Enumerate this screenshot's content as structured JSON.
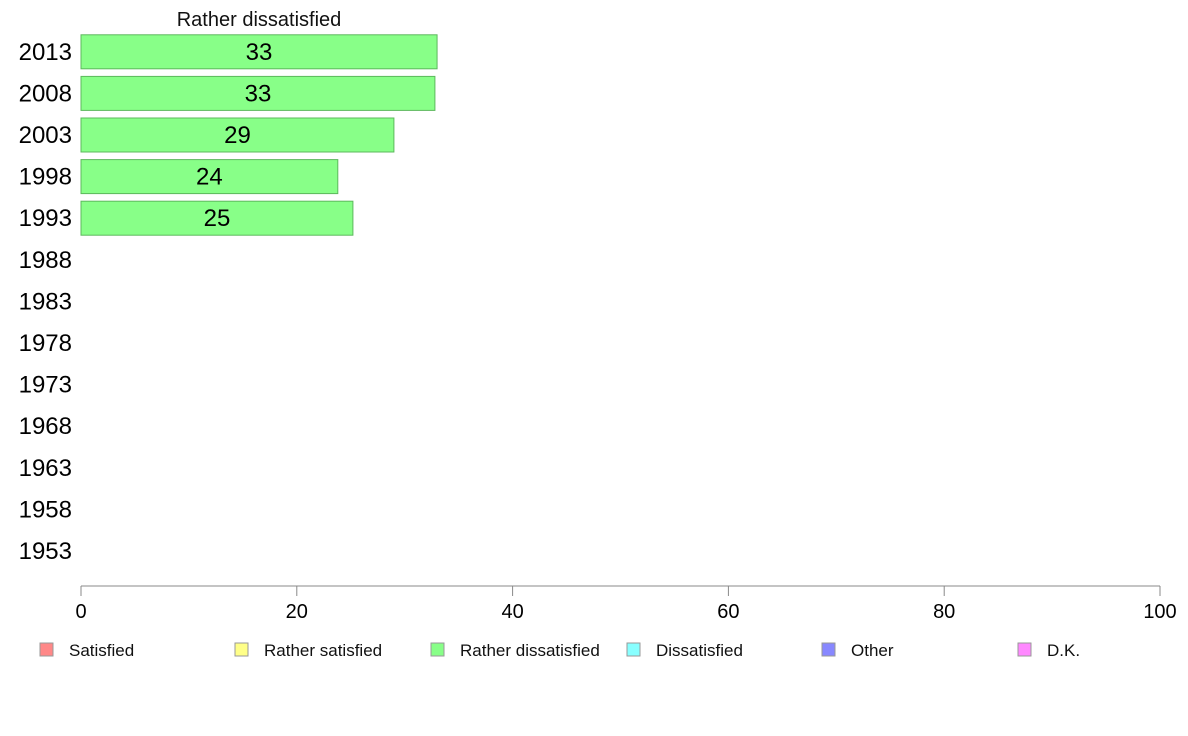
{
  "chart_data": {
    "type": "bar",
    "orientation": "horizontal",
    "title": "Rather dissatisfied",
    "categories": [
      "2013",
      "2008",
      "2003",
      "1998",
      "1993",
      "1988",
      "1983",
      "1978",
      "1973",
      "1968",
      "1963",
      "1958",
      "1953"
    ],
    "series": [
      {
        "name": "Rather dissatisfied",
        "values": [
          33,
          32.8,
          29,
          23.8,
          25.2,
          null,
          null,
          null,
          null,
          null,
          null,
          null,
          null
        ],
        "labels": [
          "33",
          "33",
          "29",
          "24",
          "25",
          "",
          "",
          "",
          "",
          "",
          "",
          "",
          ""
        ],
        "color": "#88ff88"
      }
    ],
    "xlim": [
      0,
      100
    ],
    "xticks": [
      "0",
      "20",
      "40",
      "60",
      "80",
      "100"
    ],
    "xlabel": "",
    "ylabel": "",
    "grid": false,
    "legend_position": "bottom",
    "legend": [
      {
        "label": "Satisfied",
        "color": "#ff8888"
      },
      {
        "label": "Rather satisfied",
        "color": "#ffff88"
      },
      {
        "label": "Rather dissatisfied",
        "color": "#88ff88"
      },
      {
        "label": "Dissatisfied",
        "color": "#88ffff"
      },
      {
        "label": "Other",
        "color": "#8888ff"
      },
      {
        "label": "D.K.",
        "color": "#ff88ff"
      }
    ]
  }
}
